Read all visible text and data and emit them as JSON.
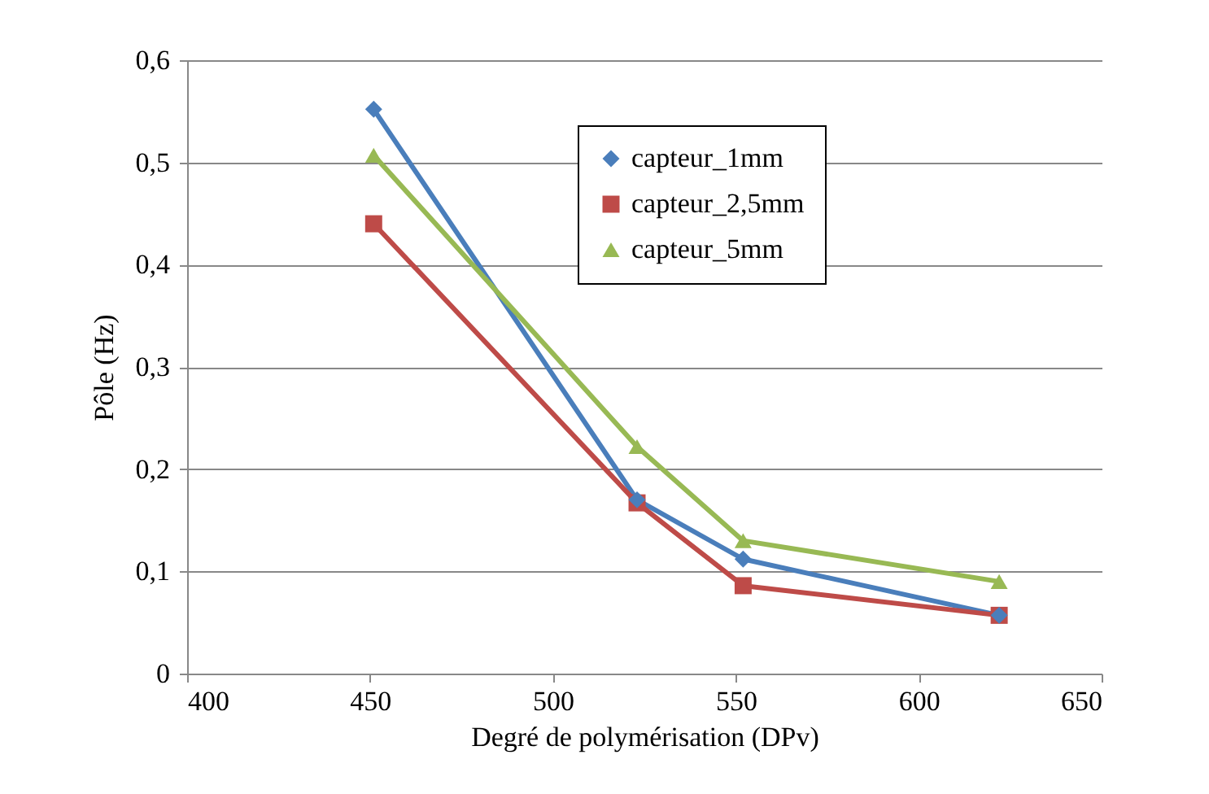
{
  "chart_data": {
    "type": "line",
    "xlabel": "Degré de polymérisation (DPv)",
    "ylabel": "Pôle (Hz)",
    "xlim": [
      400,
      650
    ],
    "xticks": [
      400,
      450,
      500,
      550,
      600,
      650
    ],
    "ylim": [
      0,
      0.6
    ],
    "yticks": [
      {
        "value": 0,
        "label": "0"
      },
      {
        "value": 0.1,
        "label": "0,1"
      },
      {
        "value": 0.2,
        "label": "0,2"
      },
      {
        "value": 0.3,
        "label": "0,3"
      },
      {
        "value": 0.4,
        "label": "0,4"
      },
      {
        "value": 0.5,
        "label": "0,5"
      },
      {
        "value": 0.6,
        "label": "0,6"
      }
    ],
    "grid": "y",
    "legend": "top right",
    "line_style": "solid",
    "x": [
      451,
      523,
      552,
      622
    ],
    "series": [
      {
        "name": "capteur_1mm",
        "color": "#4a7ebb",
        "marker": "diamond",
        "values": [
          0.552,
          0.17,
          0.112,
          0.057
        ]
      },
      {
        "name": "capteur_2,5mm",
        "color": "#be4b48",
        "marker": "square",
        "values": [
          0.44,
          0.167,
          0.086,
          0.057
        ]
      },
      {
        "name": "capteur_5mm",
        "color": "#98b954",
        "marker": "triangle",
        "values": [
          0.507,
          0.222,
          0.13,
          0.09
        ]
      }
    ]
  }
}
